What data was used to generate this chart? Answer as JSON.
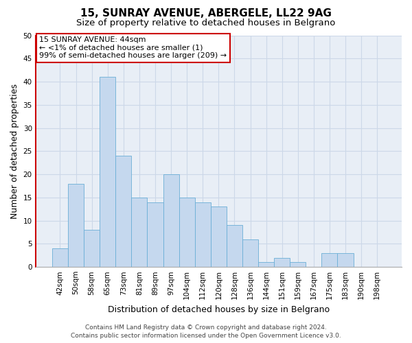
{
  "title": "15, SUNRAY AVENUE, ABERGELE, LL22 9AG",
  "subtitle": "Size of property relative to detached houses in Belgrano",
  "xlabel": "Distribution of detached houses by size in Belgrano",
  "ylabel": "Number of detached properties",
  "bar_labels": [
    "42sqm",
    "50sqm",
    "58sqm",
    "65sqm",
    "73sqm",
    "81sqm",
    "89sqm",
    "97sqm",
    "104sqm",
    "112sqm",
    "120sqm",
    "128sqm",
    "136sqm",
    "144sqm",
    "151sqm",
    "159sqm",
    "167sqm",
    "175sqm",
    "183sqm",
    "190sqm",
    "198sqm"
  ],
  "bar_values": [
    4,
    18,
    8,
    41,
    24,
    15,
    14,
    20,
    15,
    14,
    13,
    9,
    6,
    1,
    2,
    1,
    0,
    3,
    3,
    0,
    0
  ],
  "bar_color": "#c5d8ee",
  "bar_edge_color": "#6aaed6",
  "highlight_color": "#cc0000",
  "ylim": [
    0,
    50
  ],
  "yticks": [
    0,
    5,
    10,
    15,
    20,
    25,
    30,
    35,
    40,
    45,
    50
  ],
  "annotation_title": "15 SUNRAY AVENUE: 44sqm",
  "annotation_line1": "← <1% of detached houses are smaller (1)",
  "annotation_line2": "99% of semi-detached houses are larger (209) →",
  "annotation_box_color": "#ffffff",
  "annotation_box_edge": "#cc0000",
  "footer_line1": "Contains HM Land Registry data © Crown copyright and database right 2024.",
  "footer_line2": "Contains public sector information licensed under the Open Government Licence v3.0.",
  "grid_color": "#ccd8e8",
  "bg_color": "#e8eef6",
  "title_fontsize": 11,
  "subtitle_fontsize": 9.5,
  "axis_label_fontsize": 9,
  "tick_fontsize": 7.5,
  "annotation_fontsize": 8,
  "footer_fontsize": 6.5
}
